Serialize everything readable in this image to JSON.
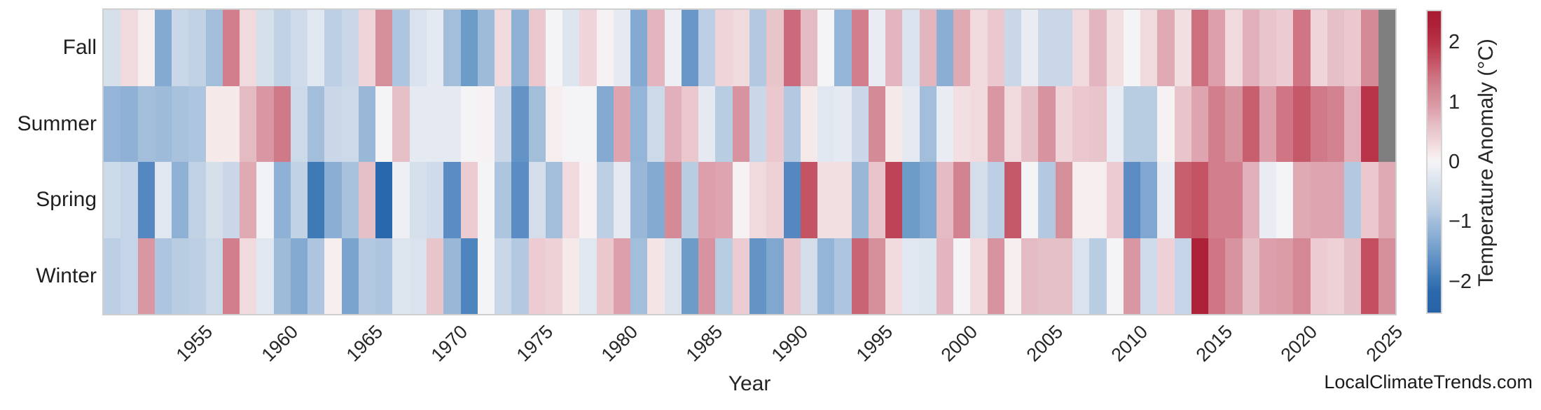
{
  "chart_data": {
    "type": "heatmap",
    "title": "",
    "xlabel": "Year",
    "ylabel": "",
    "rows": [
      "Fall",
      "Summer",
      "Spring",
      "Winter"
    ],
    "year_start": 1950,
    "year_end": 2025,
    "xticks": [
      1955,
      1960,
      1965,
      1970,
      1975,
      1980,
      1985,
      1990,
      1995,
      2000,
      2005,
      2010,
      2015,
      2020,
      2025
    ],
    "colorbar": {
      "label": "Temperature Anomaly (°C)",
      "ticks": [
        2,
        1,
        0,
        -1,
        -2
      ],
      "tick_labels": [
        "2",
        "1",
        "0",
        "−1",
        "−2"
      ],
      "vmin": -2.54,
      "vmax": 2.54,
      "missing_color": "#7f7f7f"
    },
    "colorscale": [
      [
        -2.54,
        "#2762a6"
      ],
      [
        -2.2,
        "#2a68ad"
      ],
      [
        -1.95,
        "#3e7ab6"
      ],
      [
        -1.7,
        "#5b8cc3"
      ],
      [
        -1.5,
        "#6e9cc9"
      ],
      [
        -1.3,
        "#85aad2"
      ],
      [
        -1.15,
        "#94b5d7"
      ],
      [
        -1.0,
        "#a3bedb"
      ],
      [
        -0.85,
        "#b3c9e1"
      ],
      [
        -0.7,
        "#c2d2e5"
      ],
      [
        -0.55,
        "#ccd9e9"
      ],
      [
        -0.4,
        "#d6e0eb"
      ],
      [
        -0.25,
        "#e0e7f0"
      ],
      [
        -0.15,
        "#e9edf3"
      ],
      [
        0,
        "#f4f4f6"
      ],
      [
        0.05,
        "#f6f1f2"
      ],
      [
        0.15,
        "#f5e9ea"
      ],
      [
        0.3,
        "#f1dade"
      ],
      [
        0.45,
        "#ecccd2"
      ],
      [
        0.6,
        "#e6c0c7"
      ],
      [
        0.75,
        "#e2b0ba"
      ],
      [
        0.9,
        "#dc9fab"
      ],
      [
        1.1,
        "#d58f9b"
      ],
      [
        1.3,
        "#d27e8c"
      ],
      [
        1.45,
        "#cd707f"
      ],
      [
        1.7,
        "#c45364"
      ],
      [
        2.0,
        "#b93448"
      ],
      [
        2.3,
        "#ae2239"
      ],
      [
        2.54,
        "#a81c33"
      ]
    ],
    "series": [
      {
        "name": "Fall",
        "values": [
          -0.4,
          0.3,
          0.1,
          -1.3,
          -0.6,
          -0.7,
          -1.0,
          1.3,
          0.3,
          -0.4,
          -0.7,
          -0.5,
          -0.25,
          -0.75,
          -0.6,
          0.35,
          1.1,
          -0.9,
          -0.35,
          -0.2,
          -1.0,
          -1.5,
          -1.05,
          0.3,
          -1.2,
          0.5,
          0.0,
          -0.3,
          0.35,
          0.05,
          -0.2,
          -1.3,
          0.7,
          -0.1,
          -1.55,
          -0.75,
          0.35,
          0.3,
          -0.85,
          0.55,
          1.5,
          0.65,
          0.0,
          -1.15,
          1.3,
          -0.15,
          0.7,
          -0.35,
          0.7,
          -1.25,
          0.8,
          0.3,
          0.5,
          -0.6,
          -0.15,
          -0.6,
          -0.6,
          0.3,
          0.7,
          0.25,
          0.0,
          0.3,
          0.8,
          0.25,
          1.45,
          0.9,
          0.3,
          0.75,
          0.55,
          0.45,
          1.4,
          0.35,
          0.6,
          0.5,
          1.15,
          null
        ]
      },
      {
        "name": "Summer",
        "values": [
          -1.15,
          -1.2,
          -1.0,
          -1.05,
          -0.95,
          -0.9,
          0.15,
          0.15,
          0.65,
          1.0,
          1.35,
          -0.55,
          -1.0,
          -0.6,
          -0.55,
          -1.1,
          0.0,
          0.6,
          -0.2,
          -0.2,
          -0.2,
          0.0,
          0.05,
          -0.6,
          -1.6,
          -1.0,
          0.1,
          0.0,
          0.0,
          -1.3,
          0.85,
          -1.15,
          -0.55,
          0.75,
          0.5,
          -0.2,
          -0.8,
          1.05,
          -0.6,
          0.5,
          -0.85,
          0.15,
          -0.25,
          -0.2,
          -0.6,
          1.15,
          0.15,
          -0.2,
          -1.0,
          -0.15,
          0.25,
          0.3,
          1.0,
          0.3,
          0.6,
          1.05,
          0.35,
          0.5,
          0.55,
          -0.15,
          -0.8,
          -0.8,
          0.05,
          0.55,
          0.85,
          1.3,
          1.05,
          1.6,
          0.9,
          1.4,
          1.65,
          1.35,
          1.25,
          0.75,
          2.0,
          null
        ]
      },
      {
        "name": "Spring",
        "values": [
          -0.55,
          -0.65,
          -1.75,
          -0.25,
          -1.2,
          -0.7,
          -0.4,
          -0.6,
          0.8,
          -0.05,
          -1.2,
          -0.7,
          -1.95,
          -1.25,
          -0.95,
          0.6,
          -2.2,
          -0.1,
          -0.4,
          -0.5,
          -1.7,
          0.45,
          0.0,
          -0.9,
          -1.7,
          -0.45,
          -1.0,
          0.3,
          0.05,
          -0.75,
          -0.2,
          -1.1,
          -1.3,
          1.15,
          -0.8,
          0.9,
          0.85,
          0.05,
          0.3,
          0.4,
          -1.75,
          1.7,
          0.25,
          0.25,
          -1.1,
          0.55,
          1.85,
          -1.5,
          -1.35,
          0.65,
          1.25,
          -0.45,
          -0.75,
          1.65,
          0.0,
          -0.85,
          1.1,
          0.1,
          0.1,
          0.45,
          -1.7,
          -1.35,
          -0.15,
          1.6,
          1.7,
          1.3,
          1.3,
          0.75,
          -0.15,
          0.0,
          0.8,
          0.85,
          0.85,
          -0.85,
          0.5,
          0.8
        ]
      },
      {
        "name": "Winter",
        "values": [
          -0.75,
          -0.65,
          1.0,
          -0.9,
          -0.8,
          -0.75,
          -0.55,
          1.3,
          0.3,
          -0.25,
          -1.05,
          -1.3,
          -0.9,
          0.1,
          -1.4,
          -0.85,
          -0.9,
          -0.3,
          -0.35,
          0.55,
          -1.1,
          -1.8,
          0.0,
          -0.6,
          -0.85,
          0.45,
          0.4,
          0.15,
          -0.25,
          0.5,
          0.9,
          -1.0,
          0.2,
          -0.35,
          -1.5,
          1.05,
          -0.8,
          0.45,
          -1.6,
          -1.35,
          0.55,
          -0.45,
          -1.15,
          -0.9,
          1.55,
          1.1,
          0.3,
          -0.25,
          -0.3,
          0.7,
          0.0,
          0.3,
          1.05,
          0.1,
          0.65,
          0.6,
          0.6,
          -0.35,
          -0.8,
          0.0,
          1.0,
          -0.5,
          0.4,
          -0.65,
          2.3,
          1.4,
          1.05,
          0.6,
          0.9,
          0.95,
          1.2,
          0.45,
          0.4,
          0.6,
          1.75,
          1.1
        ]
      }
    ]
  },
  "watermark": "LocalClimateTrends.com"
}
